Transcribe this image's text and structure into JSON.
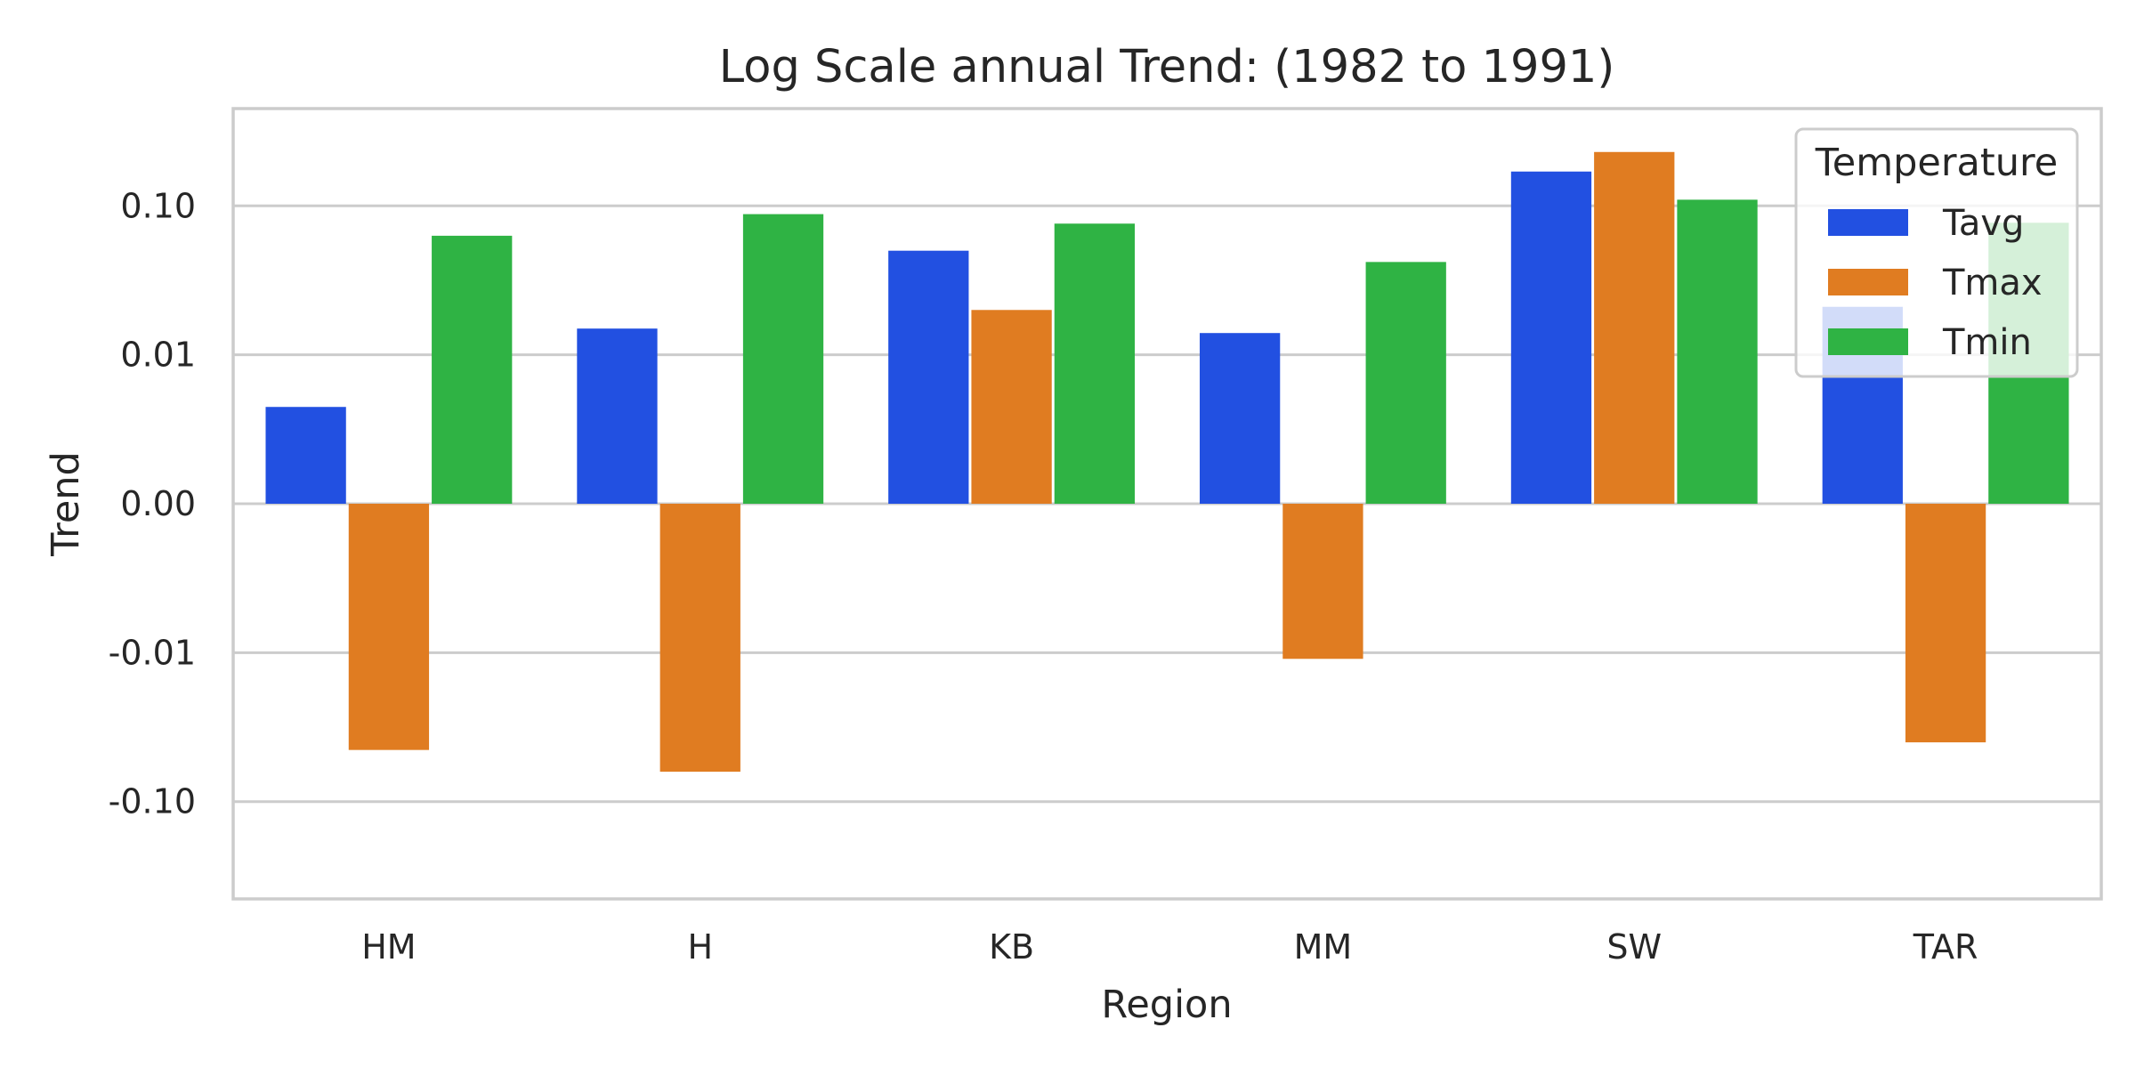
{
  "chart_data": {
    "type": "bar",
    "title": "Log Scale annual Trend: (1982 to 1991)",
    "xlabel": "Region",
    "ylabel": "Trend",
    "yscale": "symlog",
    "linthresh": 0.01,
    "ylim": [
      -0.45,
      0.45
    ],
    "yticks": [
      -0.1,
      -0.01,
      0.0,
      0.01,
      0.1
    ],
    "ytick_labels": [
      "-0.10",
      "-0.01",
      "0.00",
      "0.01",
      "0.10"
    ],
    "categories": [
      "HM",
      "H",
      "KB",
      "MM",
      "SW",
      "TAR"
    ],
    "series": [
      {
        "name": "Tavg",
        "color": "#2250e1",
        "values": [
          0.0065,
          0.015,
          0.05,
          0.014,
          0.17,
          0.021
        ]
      },
      {
        "name": "Tmax",
        "color": "#e07c21",
        "values": [
          -0.045,
          -0.063,
          0.02,
          -0.011,
          0.23,
          -0.04
        ]
      },
      {
        "name": "Tmin",
        "color": "#2fb344",
        "values": [
          0.063,
          0.088,
          0.076,
          0.042,
          0.11,
          0.077
        ]
      }
    ],
    "legend": {
      "title": "Temperature",
      "placement": "top-right"
    },
    "grid": true
  }
}
